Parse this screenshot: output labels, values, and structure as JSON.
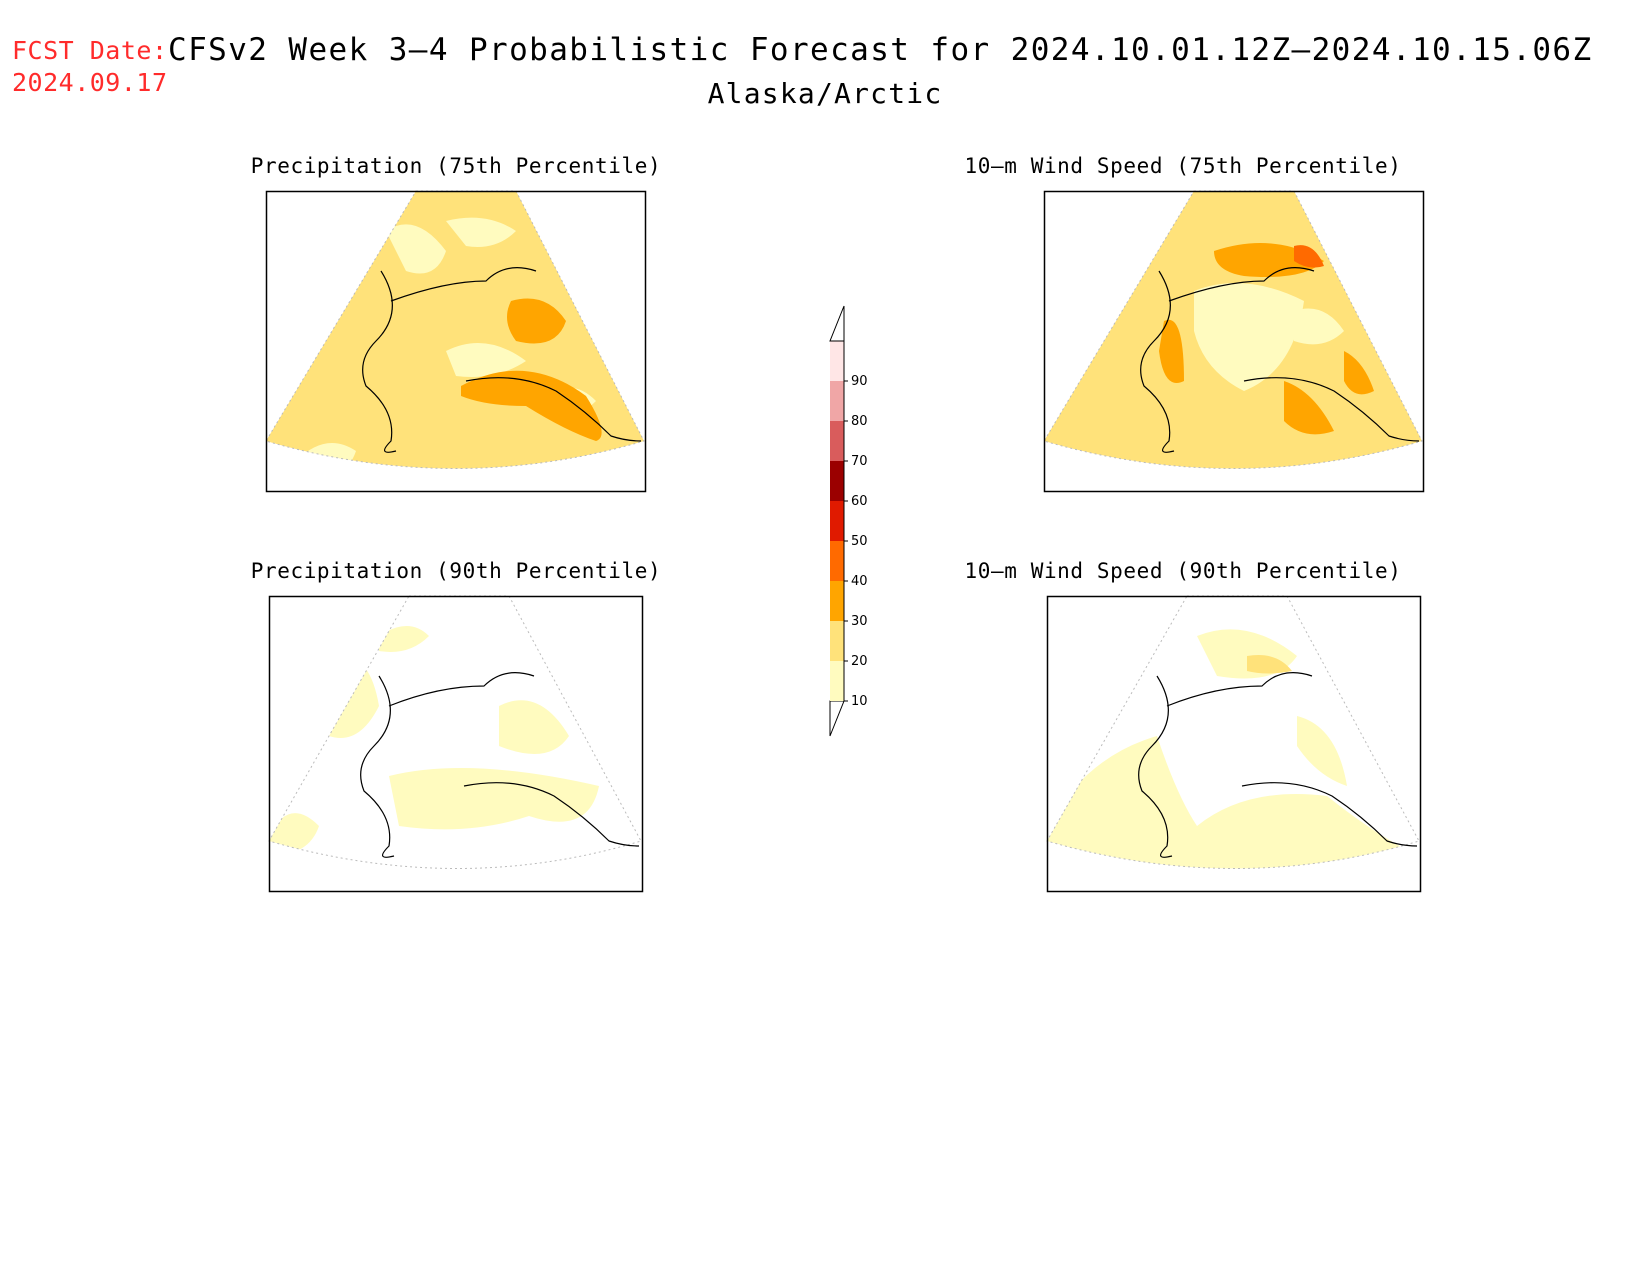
{
  "header": {
    "fcst_label": "FCST Date:",
    "fcst_date": "2024.09.17",
    "title": "CFSv2 Week 3–4 Probabilistic Forecast for 2024.10.01.12Z–2024.10.15.06Z",
    "region": "Alaska/Arctic"
  },
  "panels": [
    {
      "id": "precip75",
      "title": "Precipitation (75th Percentile)"
    },
    {
      "id": "wind75",
      "title": "10–m Wind Speed (75th Percentile)"
    },
    {
      "id": "precip90",
      "title": "Precipitation (90th Percentile)"
    },
    {
      "id": "wind90",
      "title": "10–m Wind Speed (90th Percentile)"
    }
  ],
  "colorbar": {
    "levels": [
      {
        "label": "10",
        "color": "#fffbbf"
      },
      {
        "label": "20",
        "color": "#ffe27a"
      },
      {
        "label": "30",
        "color": "#ffa500"
      },
      {
        "label": "40",
        "color": "#ff6a00"
      },
      {
        "label": "50",
        "color": "#e01a00"
      },
      {
        "label": "60",
        "color": "#9b0000"
      },
      {
        "label": "70",
        "color": "#d95c5c"
      },
      {
        "label": "80",
        "color": "#f0a6a6"
      },
      {
        "label": "90",
        "color": "#ffe6e6"
      }
    ]
  }
}
